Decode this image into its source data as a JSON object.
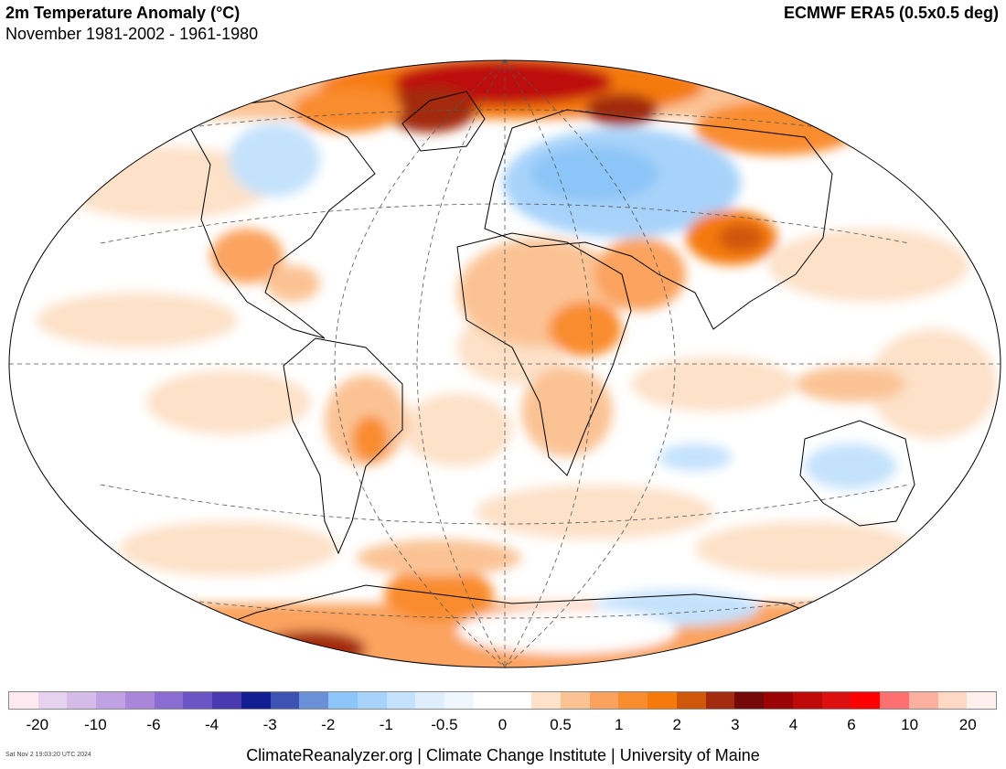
{
  "header": {
    "title": "2m Temperature Anomaly (°C)",
    "subtitle": "November 1981-2002 - 1961-1980",
    "dataset": "ECMWF ERA5 (0.5x0.5 deg)"
  },
  "legend": {
    "colors": [
      "#fde9f0",
      "#e4d2ee",
      "#d5bce8",
      "#c0a2e2",
      "#a986d9",
      "#8a6dd0",
      "#6b54c4",
      "#4a3ab1",
      "#121d91",
      "#3e52b4",
      "#6a90d8",
      "#8cc5f7",
      "#a7d3fa",
      "#c4e2fc",
      "#dfeefd",
      "#eef6fe",
      "#ffffff",
      "#ffffff",
      "#fde1c8",
      "#fbc394",
      "#fba35e",
      "#f98c2e",
      "#f57a0a",
      "#cf570a",
      "#a3290f",
      "#750909",
      "#9a0404",
      "#be0909",
      "#dd0f0f",
      "#fd0000",
      "#fe7070",
      "#fdb0a0",
      "#fdd8c5",
      "#fff0ee"
    ],
    "tick_labels": [
      "-20",
      "-10",
      "-6",
      "-4",
      "-3",
      "-2",
      "-1",
      "-0.5",
      "0",
      "0.5",
      "1",
      "2",
      "3",
      "4",
      "6",
      "10",
      "20"
    ]
  },
  "footer": {
    "timestamp": "Sat Nov  2 19:03:20 UTC 2024",
    "credit": "ClimateReanalyzer.org | Climate Change Institute | University of Maine"
  }
}
